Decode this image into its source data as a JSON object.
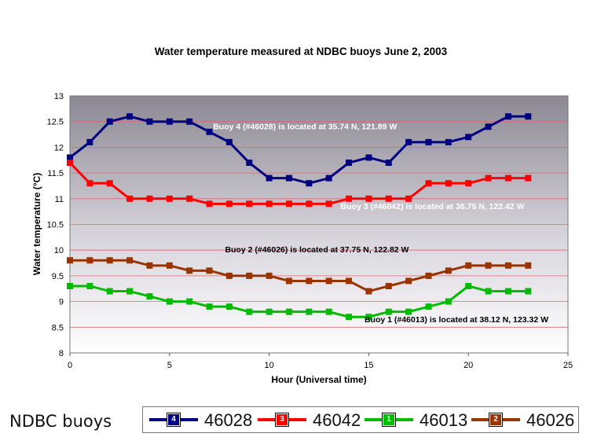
{
  "chart_data": {
    "type": "line",
    "title": "Water temperature measured at NDBC buoys June 2, 2003",
    "xlabel": "Hour (Universal time)",
    "ylabel": "Water temperature (°C)",
    "xlim": [
      0,
      25
    ],
    "ylim": [
      8,
      13
    ],
    "x_ticks": [
      "0",
      "5",
      "10",
      "15",
      "20",
      "25"
    ],
    "y_ticks": [
      "8",
      "8.5",
      "9",
      "9.5",
      "10",
      "10.5",
      "11",
      "11.5",
      "12",
      "12.5",
      "13"
    ],
    "grid": true,
    "x": [
      0,
      1,
      2,
      3,
      4,
      5,
      6,
      7,
      8,
      9,
      10,
      11,
      12,
      13,
      14,
      15,
      16,
      17,
      18,
      19,
      20,
      21,
      22,
      23
    ],
    "series": [
      {
        "name": "46028",
        "marker_label": "4",
        "color": "#000080",
        "values": [
          11.8,
          12.1,
          12.5,
          12.6,
          12.5,
          12.5,
          12.5,
          12.3,
          12.1,
          11.7,
          11.4,
          11.4,
          11.3,
          11.4,
          11.7,
          11.8,
          11.7,
          12.1,
          12.1,
          12.1,
          12.2,
          12.4,
          12.6,
          12.6
        ]
      },
      {
        "name": "46042",
        "marker_label": "3",
        "color": "#ff0000",
        "values": [
          11.7,
          11.3,
          11.3,
          11.0,
          11.0,
          11.0,
          11.0,
          10.9,
          10.9,
          10.9,
          10.9,
          10.9,
          10.9,
          10.9,
          11.0,
          11.0,
          11.0,
          11.0,
          11.3,
          11.3,
          11.3,
          11.4,
          11.4,
          11.4
        ]
      },
      {
        "name": "46013",
        "marker_label": "1",
        "color": "#00bb00",
        "values": [
          9.3,
          9.3,
          9.2,
          9.2,
          9.1,
          9.0,
          9.0,
          8.9,
          8.9,
          8.8,
          8.8,
          8.8,
          8.8,
          8.8,
          8.7,
          8.7,
          8.8,
          8.8,
          8.9,
          9.0,
          9.3,
          9.2,
          9.2,
          9.2
        ]
      },
      {
        "name": "46026",
        "marker_label": "2",
        "color": "#993300",
        "values": [
          9.8,
          9.8,
          9.8,
          9.8,
          9.7,
          9.7,
          9.6,
          9.6,
          9.5,
          9.5,
          9.5,
          9.4,
          9.4,
          9.4,
          9.4,
          9.2,
          9.3,
          9.4,
          9.5,
          9.6,
          9.7,
          9.7,
          9.7,
          9.7
        ]
      }
    ],
    "annotations": [
      {
        "text": "Buoy 4 (#46028) is located at 35.74 N, 121.89 W",
        "color": "#ffffff",
        "x": 11.8,
        "y": 12.35
      },
      {
        "text": "Buoy 3 (#46042) is located at 36.75 N, 122.42 W",
        "color": "#ffffff",
        "x": 18.2,
        "y": 10.8
      },
      {
        "text": "Buoy 2 (#46026) is located at 37.75 N, 122.82 W",
        "color": "#000000",
        "x": 12.4,
        "y": 9.96
      },
      {
        "text": "Buoy 1 (#46013) is located at 38.12 N, 123.32 W",
        "color": "#000000",
        "x": 19.4,
        "y": 8.6
      }
    ]
  },
  "footer_label": "NDBC buoys",
  "legend": [
    {
      "marker": "4",
      "label": "46028",
      "color": "#000080"
    },
    {
      "marker": "3",
      "label": "46042",
      "color": "#ff0000"
    },
    {
      "marker": "1",
      "label": "46013",
      "color": "#00bb00"
    },
    {
      "marker": "2",
      "label": "46026",
      "color": "#993300"
    }
  ]
}
